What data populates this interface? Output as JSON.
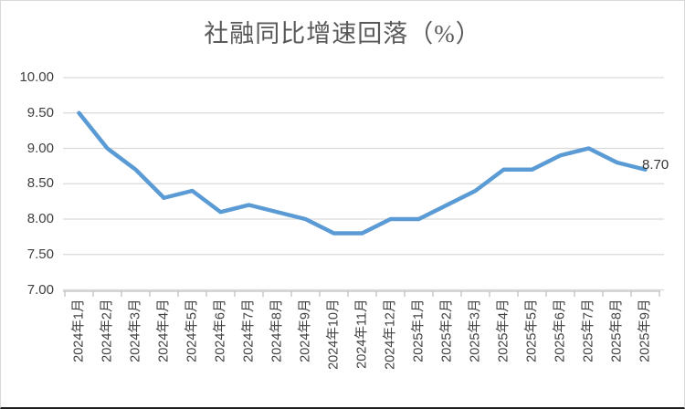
{
  "chart_data": {
    "type": "line",
    "title": "社融同比增速回落（%）",
    "categories": [
      "2024年1月",
      "2024年2月",
      "2024年3月",
      "2024年4月",
      "2024年5月",
      "2024年6月",
      "2024年7月",
      "2024年8月",
      "2024年9月",
      "2024年10月",
      "2024年11月",
      "2024年12月",
      "2025年1月",
      "2025年2月",
      "2025年3月",
      "2025年4月",
      "2025年5月",
      "2025年6月",
      "2025年7月",
      "2025年8月",
      "2025年9月"
    ],
    "values": [
      9.5,
      9.0,
      8.7,
      8.3,
      8.4,
      8.1,
      8.2,
      8.1,
      8.0,
      7.8,
      7.8,
      8.0,
      8.0,
      8.2,
      8.4,
      8.7,
      8.7,
      8.9,
      9.0,
      8.8,
      8.7
    ],
    "ytick_labels": [
      "10.00",
      "9.50",
      "9.00",
      "8.50",
      "8.00",
      "7.50",
      "7.00"
    ],
    "ylim": [
      7.0,
      10.0
    ],
    "ytick_step": 0.5,
    "end_label": "8.70",
    "xlabel": "",
    "ylabel": "",
    "grid": "horizontal",
    "legend": "none",
    "colors": {
      "line": "#5B9BD5",
      "gridline": "#D9D9D9",
      "axis": "#BFBFBF",
      "tick_label": "#404040",
      "title": "#595959",
      "data_label": "#333333",
      "background": "#FFFFFF"
    }
  }
}
